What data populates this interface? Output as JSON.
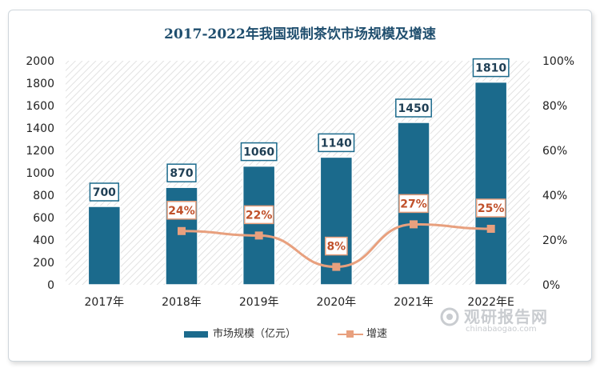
{
  "chart_data": {
    "type": "bar",
    "title": "2017-2022年我国现制茶饮市场规模及增速",
    "categories": [
      "2017年",
      "2018年",
      "2019年",
      "2020年",
      "2021年",
      "2022年E"
    ],
    "series": [
      {
        "name": "市场规模（亿元）",
        "type": "bar",
        "axis": "left",
        "values": [
          700,
          870,
          1060,
          1140,
          1450,
          1810
        ],
        "labels": [
          "700",
          "870",
          "1060",
          "1140",
          "1450",
          "1810"
        ],
        "color": "#1b6a8c"
      },
      {
        "name": "增速",
        "type": "line",
        "axis": "right",
        "values": [
          null,
          24,
          22,
          8,
          27,
          25
        ],
        "labels": [
          "",
          "24%",
          "22%",
          "8%",
          "27%",
          "25%"
        ],
        "color": "#e8a07e"
      }
    ],
    "y_left": {
      "min": 0,
      "max": 2000,
      "ticks": [
        "0",
        "200",
        "400",
        "600",
        "800",
        "1000",
        "1200",
        "1400",
        "1600",
        "1800",
        "2000"
      ]
    },
    "y_right": {
      "min": 0,
      "max": 100,
      "ticks": [
        "0%",
        "20%",
        "40%",
        "60%",
        "80%",
        "100%"
      ]
    },
    "legend_position": "bottom",
    "plot_background": "diagonal-hatch"
  },
  "watermark": {
    "cn": "观研报告网",
    "en": "chinabaogao.com",
    "icon": "chinabaogao-logo-icon"
  }
}
